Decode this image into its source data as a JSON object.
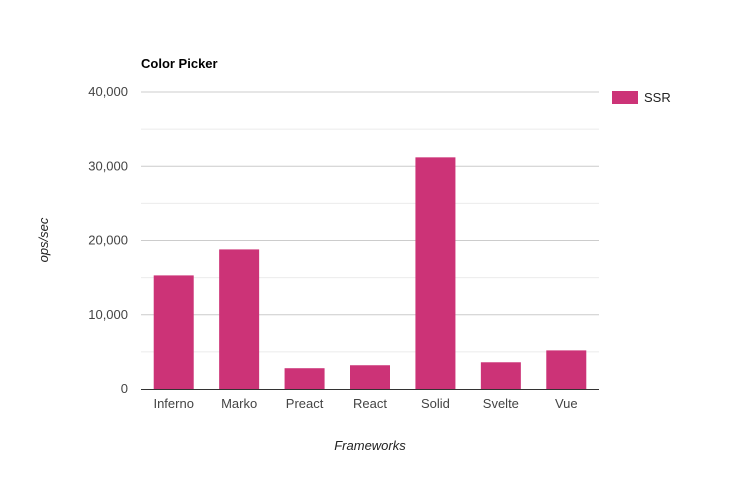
{
  "chart_data": {
    "type": "bar",
    "title": "Color Picker",
    "xlabel": "Frameworks",
    "ylabel": "ops/sec",
    "categories": [
      "Inferno",
      "Marko",
      "Preact",
      "React",
      "Solid",
      "Svelte",
      "Vue"
    ],
    "series": [
      {
        "name": "SSR",
        "values": [
          15300,
          18800,
          2800,
          3200,
          31200,
          3600,
          5200
        ],
        "color": "#cc3377"
      }
    ],
    "ylim": [
      0,
      40000
    ],
    "yticks": [
      0,
      10000,
      20000,
      30000,
      40000
    ],
    "ytick_labels": [
      "0",
      "10,000",
      "20,000",
      "30,000",
      "40,000"
    ],
    "grid": true,
    "legend": "right"
  }
}
